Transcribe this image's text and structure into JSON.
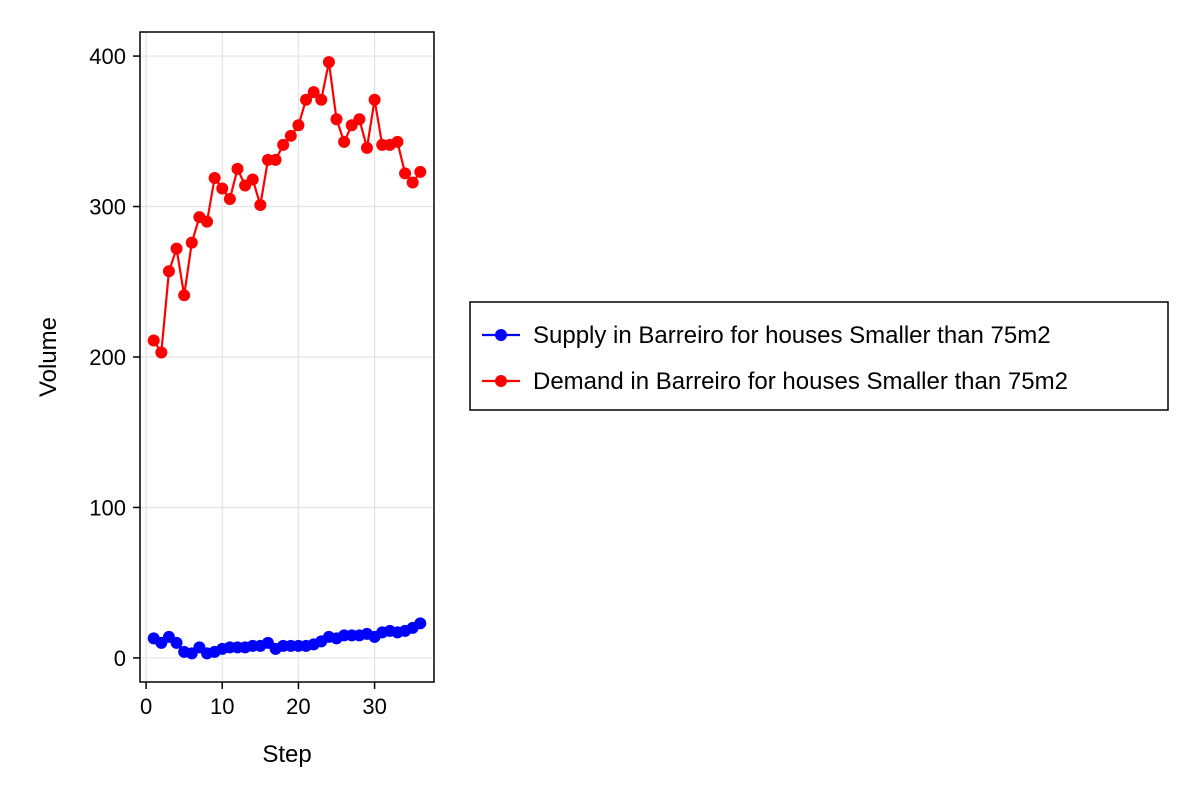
{
  "chart_data": {
    "type": "line",
    "xlabel": "Step",
    "ylabel": "Volume",
    "xlim": [
      -0.8,
      37.8
    ],
    "ylim": [
      -16,
      416
    ],
    "x_ticks": [
      0,
      10,
      20,
      30
    ],
    "y_ticks": [
      0,
      100,
      200,
      300,
      400
    ],
    "grid": true,
    "legend_position": "right",
    "x": [
      1,
      2,
      3,
      4,
      5,
      6,
      7,
      8,
      9,
      10,
      11,
      12,
      13,
      14,
      15,
      16,
      17,
      18,
      19,
      20,
      21,
      22,
      23,
      24,
      25,
      26,
      27,
      28,
      29,
      30,
      31,
      32,
      33,
      34,
      35,
      36
    ],
    "series": [
      {
        "name": "Supply in Barreiro for houses Smaller than 75m2",
        "color": "#0000ff",
        "marker": "circle",
        "values": [
          13,
          10,
          14,
          10,
          4,
          3,
          7,
          3,
          4,
          6,
          7,
          7,
          7,
          8,
          8,
          10,
          6,
          8,
          8,
          8,
          8,
          9,
          11,
          14,
          13,
          15,
          15,
          15,
          16,
          14,
          17,
          18,
          17,
          18,
          20,
          23
        ]
      },
      {
        "name": "Demand in Barreiro for houses Smaller than 75m2",
        "color": "#ff0000",
        "marker": "circle",
        "values": [
          211,
          203,
          257,
          272,
          241,
          276,
          293,
          290,
          319,
          312,
          305,
          325,
          314,
          318,
          301,
          331,
          331,
          341,
          347,
          354,
          371,
          376,
          371,
          396,
          358,
          343,
          354,
          358,
          339,
          371,
          341,
          341,
          343,
          322,
          316,
          323
        ]
      }
    ]
  }
}
